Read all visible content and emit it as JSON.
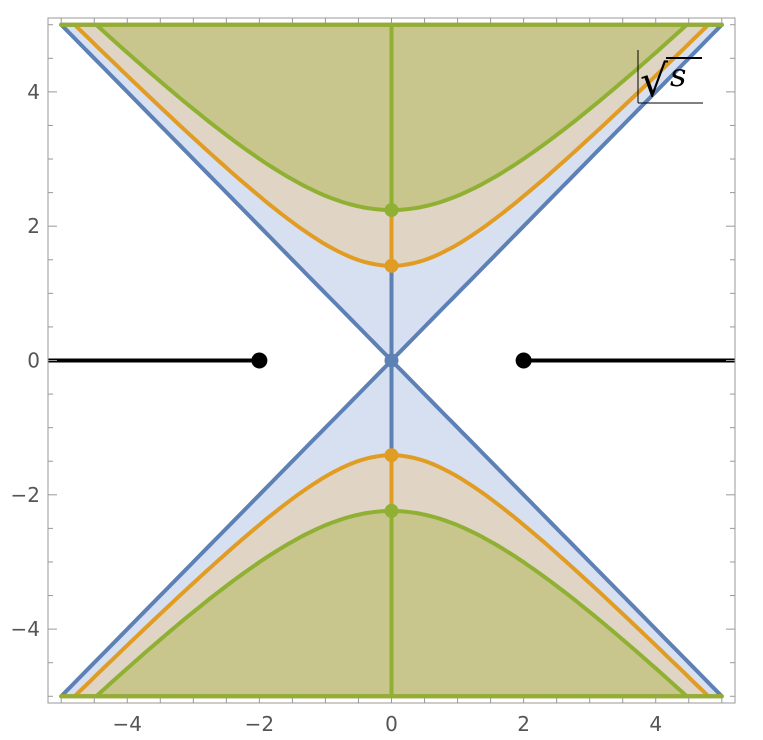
{
  "chart_data": {
    "type": "area",
    "title": "",
    "xlabel": "",
    "ylabel": "",
    "xlim": [
      -5.2,
      5.2
    ],
    "ylim": [
      -5.1,
      5.1
    ],
    "xticks": [
      -4,
      -2,
      0,
      2,
      4
    ],
    "xtick_labels": [
      "−4",
      "−2",
      "0",
      "2",
      "4"
    ],
    "yticks": [
      -4,
      -2,
      0,
      2,
      4
    ],
    "ytick_labels": [
      "−4",
      "−2",
      "0",
      "2",
      "4"
    ],
    "grid": false,
    "frame": true,
    "plot_label": {
      "radical": "√",
      "variable": "s"
    },
    "series": [
      {
        "color": "#5e81b5",
        "fill": "#c9d6ec",
        "hyperbola_a": 0,
        "vertices": [
          [
            0,
            0
          ]
        ],
        "region": "|y| >= |x|-type region bounded by curves through origin"
      },
      {
        "color": "#e19c24",
        "fill": "#e3d2b4",
        "hyperbola_a": 1.41,
        "vertices": [
          [
            0,
            1.41
          ],
          [
            0,
            -1.41
          ]
        ]
      },
      {
        "color": "#8fb032",
        "fill": "#c0c07a",
        "hyperbola_a": 2.24,
        "vertices": [
          [
            0,
            2.24
          ],
          [
            0,
            -2.24
          ]
        ]
      }
    ],
    "cuts": {
      "color": "#000000",
      "branch_points": [
        [
          -2,
          0
        ],
        [
          2,
          0
        ]
      ],
      "segments": [
        [
          [
            -5.2,
            0
          ],
          [
            -2,
            0
          ]
        ],
        [
          [
            2,
            0
          ],
          [
            5.2,
            0
          ]
        ]
      ]
    }
  }
}
